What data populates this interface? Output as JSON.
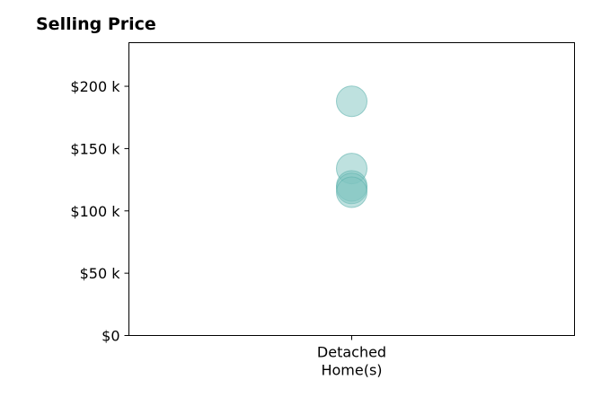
{
  "chart_data": {
    "type": "scatter",
    "title": "Selling Price",
    "categories": [
      "Detached|Home(s)"
    ],
    "series": [
      {
        "category": "Detached|Home(s)",
        "values": [
          188000,
          134000,
          120000,
          118000,
          115000
        ]
      }
    ],
    "ylim": [
      0,
      235000
    ],
    "yticks": [
      0,
      50000,
      100000,
      150000,
      200000
    ],
    "ytick_labels": [
      "$0",
      "$50 k",
      "$100 k",
      "$150 k",
      "$200 k"
    ],
    "grid": false,
    "marker_color": "#7dc4bf"
  }
}
